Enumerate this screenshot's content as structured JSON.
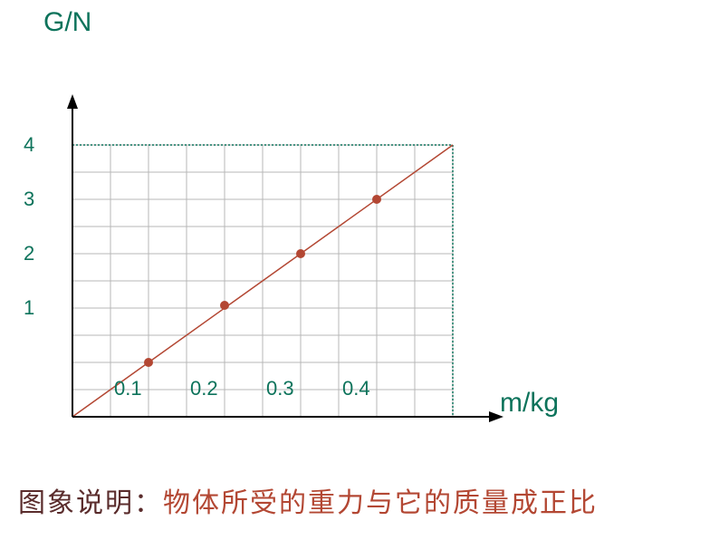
{
  "chart": {
    "type": "scatter-with-line",
    "y_label": "G/N",
    "x_label": "m/kg",
    "label_color": "#0d735b",
    "label_fontsize": 30,
    "tick_color": "#0d735b",
    "tick_fontsize": 22,
    "background_color": "#ffffff",
    "plot_bg_color": "#ffffff",
    "grid_color": "#b7b7b7",
    "grid_width": 1,
    "border_dotted_color": "#0d735b",
    "axis_color": "#000000",
    "axis_width": 2,
    "xlim": [
      0,
      0.5
    ],
    "ylim": [
      0,
      5
    ],
    "x_cells": 10,
    "y_cells": 10,
    "x_ticks": [
      0.1,
      0.2,
      0.3,
      0.4
    ],
    "y_ticks": [
      1,
      2,
      3,
      4
    ],
    "line": {
      "x1": 0,
      "y1": 0,
      "x2": 0.5,
      "y2": 5,
      "color": "#b34733",
      "width": 1.5
    },
    "points": [
      {
        "x": 0.1,
        "y": 1.0
      },
      {
        "x": 0.2,
        "y": 2.05
      },
      {
        "x": 0.3,
        "y": 3.0
      },
      {
        "x": 0.4,
        "y": 4.0
      }
    ],
    "point_color": "#b34733",
    "point_radius": 5
  },
  "caption": {
    "prefix": "图象说明：",
    "prefix_color": "#5a2c2c",
    "text": "物体所受的重力与它的质量成正比",
    "text_color": "#b34733",
    "fontsize": 30
  }
}
